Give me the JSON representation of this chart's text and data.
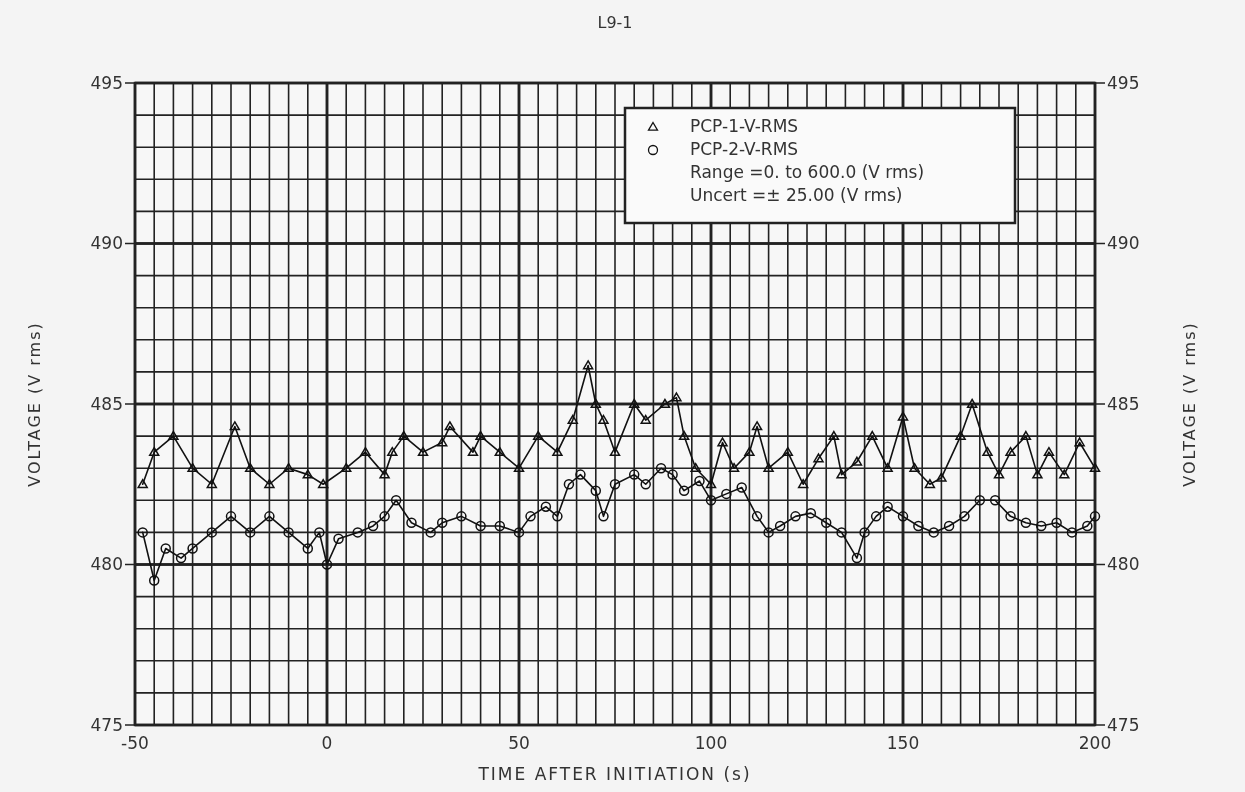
{
  "chart_data": {
    "type": "line",
    "title": "L9-1",
    "xlabel": "TIME AFTER INITIATION (s)",
    "ylabel": "VOLTAGE (V rms)",
    "y2label": "VOLTAGE (V rms)",
    "xlim": [
      -50,
      200
    ],
    "xticks": [
      -50,
      0,
      50,
      100,
      150,
      200
    ],
    "ylim": [
      475,
      495
    ],
    "yticks": [
      475,
      480,
      485,
      490,
      495
    ],
    "y2lim": [
      475,
      495
    ],
    "y2ticks": [
      475,
      480,
      485,
      490,
      495
    ],
    "grid": true,
    "legend": "top right",
    "line_style": "solid",
    "annotations": [
      "Range =0. to 600.0 (V rms)",
      "Uncert =± 25.00 (V rms)"
    ],
    "series": [
      {
        "name": "PCP-1-V-RMS",
        "color": "#111111",
        "marker": "triangle",
        "x": [
          -48,
          -45,
          -40,
          -35,
          -30,
          -24,
          -20,
          -15,
          -10,
          -5,
          -1,
          5,
          10,
          15,
          17,
          20,
          25,
          30,
          32,
          38,
          40,
          45,
          50,
          55,
          60,
          64,
          68,
          70,
          72,
          75,
          80,
          83,
          88,
          91,
          93,
          96,
          100,
          103,
          106,
          110,
          112,
          115,
          120,
          124,
          128,
          132,
          134,
          138,
          142,
          146,
          150,
          153,
          157,
          160,
          165,
          168,
          172,
          175,
          178,
          182,
          185,
          188,
          192,
          196,
          200
        ],
        "values": [
          482.5,
          483.5,
          484,
          483,
          482.5,
          484.3,
          483,
          482.5,
          483,
          482.8,
          482.5,
          483,
          483.5,
          482.8,
          483.5,
          484,
          483.5,
          483.8,
          484.3,
          483.5,
          484,
          483.5,
          483,
          484,
          483.5,
          484.5,
          486.2,
          485,
          484.5,
          483.5,
          485,
          484.5,
          485,
          485.2,
          484,
          483,
          482.5,
          483.8,
          483,
          483.5,
          484.3,
          483,
          483.5,
          482.5,
          483.3,
          484,
          482.8,
          483.2,
          484,
          483,
          484.6,
          483,
          482.5,
          482.7,
          484,
          485,
          483.5,
          482.8,
          483.5,
          484,
          482.8,
          483.5,
          482.8,
          483.8,
          483
        ]
      },
      {
        "name": "PCP-2-V-RMS",
        "color": "#111111",
        "marker": "circle",
        "x": [
          -48,
          -45,
          -42,
          -38,
          -35,
          -30,
          -25,
          -20,
          -15,
          -10,
          -5,
          -2,
          0,
          3,
          8,
          12,
          15,
          18,
          22,
          27,
          30,
          35,
          40,
          45,
          50,
          53,
          57,
          60,
          63,
          66,
          70,
          72,
          75,
          80,
          83,
          87,
          90,
          93,
          97,
          100,
          104,
          108,
          112,
          115,
          118,
          122,
          126,
          130,
          134,
          138,
          140,
          143,
          146,
          150,
          154,
          158,
          162,
          166,
          170,
          174,
          178,
          182,
          186,
          190,
          194,
          198,
          200
        ],
        "values": [
          481,
          479.5,
          480.5,
          480.2,
          480.5,
          481,
          481.5,
          481,
          481.5,
          481,
          480.5,
          481,
          480,
          480.8,
          481,
          481.2,
          481.5,
          482,
          481.3,
          481,
          481.3,
          481.5,
          481.2,
          481.2,
          481,
          481.5,
          481.8,
          481.5,
          482.5,
          482.8,
          482.3,
          481.5,
          482.5,
          482.8,
          482.5,
          483,
          482.8,
          482.3,
          482.6,
          482,
          482.2,
          482.4,
          481.5,
          481,
          481.2,
          481.5,
          481.6,
          481.3,
          481,
          480.2,
          481,
          481.5,
          481.8,
          481.5,
          481.2,
          481,
          481.2,
          481.5,
          482,
          482,
          481.5,
          481.3,
          481.2,
          481.3,
          481,
          481.2,
          481.5
        ]
      }
    ]
  }
}
